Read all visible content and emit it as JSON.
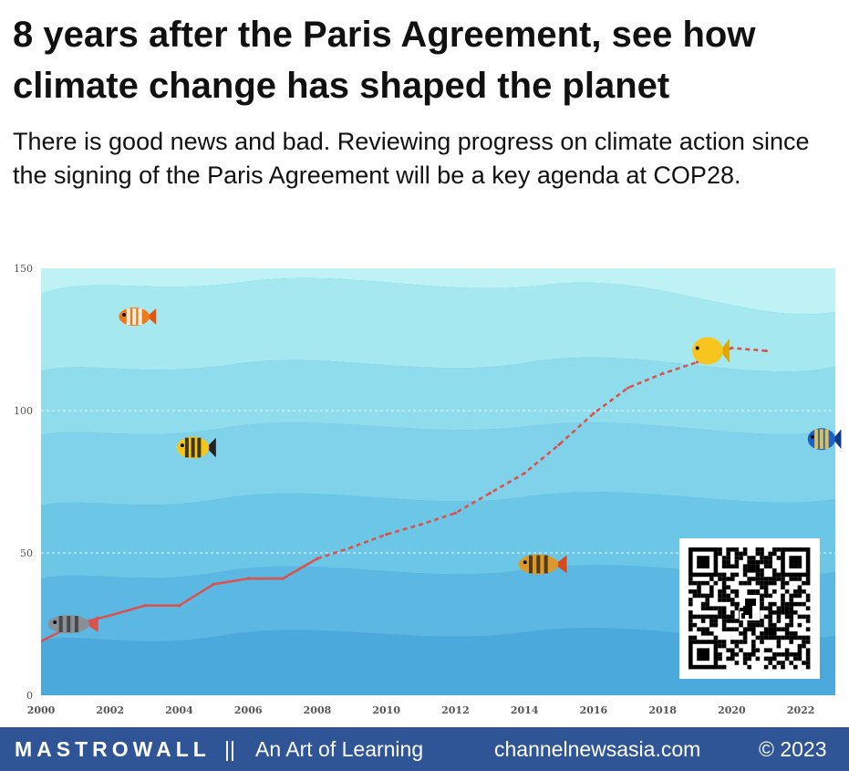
{
  "header": {
    "title": "8 years after the Paris Agreement, see how climate change has shaped the planet",
    "subtitle": "There is good news and bad. Reviewing progress on climate action since the signing of the Paris Agreement will be a key agenda at COP28."
  },
  "chart_data": {
    "type": "line",
    "title": "",
    "xlabel": "",
    "ylabel": "",
    "xlim": [
      2000,
      2023
    ],
    "ylim": [
      0,
      150
    ],
    "x_ticks": [
      "2000",
      "2002",
      "2004",
      "2006",
      "2008",
      "2010",
      "2012",
      "2014",
      "2016",
      "2018",
      "2020",
      "2022"
    ],
    "y_ticks": [
      "0",
      "50",
      "100",
      "150"
    ],
    "grid": "horizontal dashed",
    "series": [
      {
        "style": "solid",
        "color": "#d9534f",
        "points": [
          [
            2000,
            19
          ],
          [
            2001,
            25
          ],
          [
            2002,
            28
          ],
          [
            2003,
            31.5
          ],
          [
            2004,
            31.5
          ],
          [
            2005,
            39
          ],
          [
            2006,
            41
          ],
          [
            2007,
            41
          ],
          [
            2008,
            48
          ]
        ]
      },
      {
        "style": "dashed",
        "color": "#d9534f",
        "points": [
          [
            2008,
            48
          ],
          [
            2009,
            52
          ],
          [
            2010,
            56.5
          ],
          [
            2011,
            60
          ],
          [
            2012,
            64
          ],
          [
            2013,
            71
          ],
          [
            2014,
            78
          ],
          [
            2015,
            88
          ],
          [
            2016,
            99
          ],
          [
            2017,
            108
          ],
          [
            2018,
            113
          ],
          [
            2019,
            117
          ],
          [
            2020,
            122
          ],
          [
            2021,
            121
          ]
        ]
      }
    ],
    "fish": [
      {
        "kind": "clownfish",
        "x": 2002.7,
        "y": 133
      },
      {
        "kind": "yellow-striped",
        "x": 2004.4,
        "y": 87
      },
      {
        "kind": "yellow-tang",
        "x": 2019.3,
        "y": 121
      },
      {
        "kind": "blue-tang",
        "x": 2022.6,
        "y": 90
      },
      {
        "kind": "perch",
        "x": 2014.4,
        "y": 46
      },
      {
        "kind": "grey-striped",
        "x": 2000.8,
        "y": 25
      }
    ]
  },
  "footer": {
    "brand": "MASTROWALL",
    "separator": "||",
    "tagline": "An Art of Learning",
    "source": "channelnewsasia.com",
    "copyright": "© 2023"
  },
  "colors": {
    "footer_bg": "#2f5597",
    "line": "#d9534f",
    "water_top": "#b8f0f4",
    "water_bottom": "#4aa6dd"
  }
}
